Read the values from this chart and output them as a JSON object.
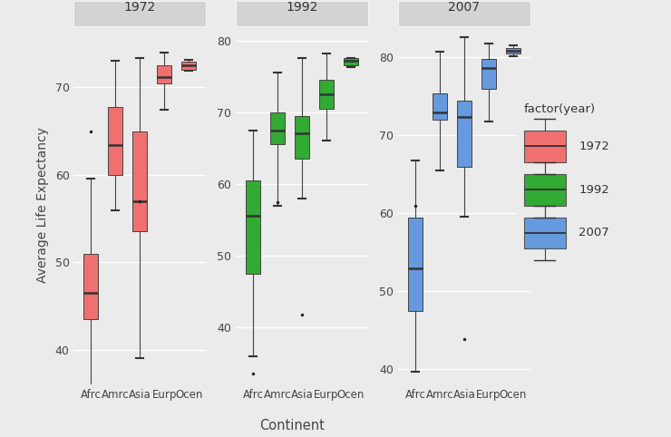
{
  "years": [
    "1972",
    "1992",
    "2007"
  ],
  "continents": [
    "Afrc",
    "Amrc",
    "Asia",
    "Eurp",
    "Ocen"
  ],
  "colors": {
    "1972": "#F07070",
    "1992": "#33AA33",
    "2007": "#6699DD"
  },
  "panel_bg": "#EBEBEB",
  "grid_color": "#FFFFFF",
  "facet_label_bg": "#D3D3D3",
  "xlabel": "Continent",
  "ylabel": "Average Life Expectancy",
  "legend_title": "factor(year)",
  "boxplot_data": {
    "1972": {
      "Afrc": {
        "whislo": 35.5,
        "q1": 43.5,
        "med": 46.5,
        "q3": 51.0,
        "whishi": 59.6,
        "fliers": [
          65.0
        ]
      },
      "Amrc": {
        "whislo": 55.9,
        "q1": 60.0,
        "med": 63.4,
        "q3": 67.8,
        "whishi": 73.0,
        "fliers": []
      },
      "Asia": {
        "whislo": 39.0,
        "q1": 53.5,
        "med": 57.0,
        "q3": 65.0,
        "whishi": 73.4,
        "fliers": [
          57.0
        ]
      },
      "Eurp": {
        "whislo": 67.5,
        "q1": 70.5,
        "med": 71.2,
        "q3": 72.5,
        "whishi": 74.0,
        "fliers": []
      },
      "Ocen": {
        "whislo": 71.9,
        "q1": 72.0,
        "med": 72.5,
        "q3": 72.9,
        "whishi": 73.2,
        "fliers": []
      }
    },
    "1992": {
      "Afrc": {
        "whislo": 36.0,
        "q1": 47.5,
        "med": 55.5,
        "q3": 60.5,
        "whishi": 67.5,
        "fliers": [
          33.5
        ]
      },
      "Amrc": {
        "whislo": 57.0,
        "q1": 65.5,
        "med": 67.5,
        "q3": 70.0,
        "whishi": 75.5,
        "fliers": [
          57.5
        ]
      },
      "Asia": {
        "whislo": 58.0,
        "q1": 63.5,
        "med": 67.0,
        "q3": 69.5,
        "whishi": 77.6,
        "fliers": [
          41.7
        ]
      },
      "Eurp": {
        "whislo": 66.0,
        "q1": 70.5,
        "med": 72.5,
        "q3": 74.5,
        "whishi": 78.2,
        "fliers": []
      },
      "Ocen": {
        "whislo": 76.3,
        "q1": 76.6,
        "med": 77.2,
        "q3": 77.6,
        "whishi": 77.6,
        "fliers": []
      }
    },
    "2007": {
      "Afrc": {
        "whislo": 39.6,
        "q1": 47.5,
        "med": 52.9,
        "q3": 59.4,
        "whishi": 66.8,
        "fliers": [
          61.0
        ]
      },
      "Amrc": {
        "whislo": 65.5,
        "q1": 72.0,
        "med": 72.9,
        "q3": 75.4,
        "whishi": 80.7,
        "fliers": []
      },
      "Asia": {
        "whislo": 59.5,
        "q1": 66.0,
        "med": 72.4,
        "q3": 74.5,
        "whishi": 82.6,
        "fliers": [
          43.8
        ]
      },
      "Eurp": {
        "whislo": 71.8,
        "q1": 76.0,
        "med": 78.6,
        "q3": 79.8,
        "whishi": 81.8,
        "fliers": []
      },
      "Ocen": {
        "whislo": 80.2,
        "q1": 80.5,
        "med": 80.9,
        "q3": 81.2,
        "whishi": 81.5,
        "fliers": []
      }
    }
  },
  "ylims": {
    "1972": [
      36,
      77
    ],
    "1992": [
      32,
      82
    ],
    "2007": [
      38,
      84
    ]
  },
  "yticks": {
    "1972": [
      40,
      50,
      60,
      70
    ],
    "1992": [
      40,
      50,
      60,
      70,
      80
    ],
    "2007": [
      40,
      50,
      60,
      70,
      80
    ]
  }
}
